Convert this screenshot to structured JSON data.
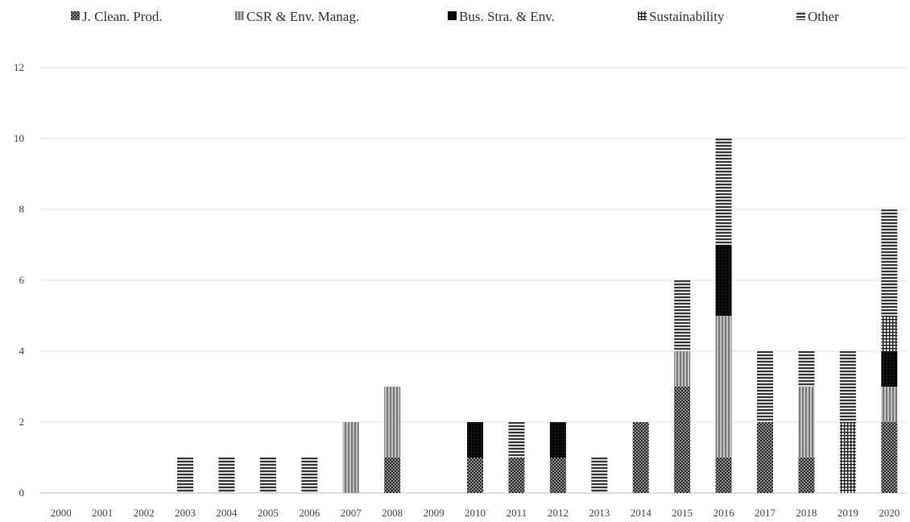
{
  "chart_data": {
    "type": "bar",
    "stacked": true,
    "categories": [
      "2000",
      "2001",
      "2002",
      "2003",
      "2004",
      "2005",
      "2006",
      "2007",
      "2008",
      "2009",
      "2010",
      "2011",
      "2012",
      "2013",
      "2014",
      "2015",
      "2016",
      "2017",
      "2018",
      "2019",
      "2020"
    ],
    "series": [
      {
        "name": "J. Clean. Prod.",
        "values": [
          0,
          0,
          0,
          0,
          0,
          0,
          0,
          0,
          1,
          0,
          1,
          1,
          1,
          0,
          2,
          3,
          1,
          2,
          1,
          0,
          2
        ],
        "color": "#3c3c3c",
        "pattern": "jcp"
      },
      {
        "name": "CSR & Env. Manag.",
        "values": [
          0,
          0,
          0,
          0,
          0,
          0,
          0,
          2,
          2,
          0,
          0,
          0,
          0,
          0,
          0,
          1,
          4,
          0,
          2,
          0,
          1
        ],
        "color": "#9a9a9a",
        "pattern": "csr"
      },
      {
        "name": "Bus. Stra. & Env.",
        "values": [
          0,
          0,
          0,
          0,
          0,
          0,
          0,
          0,
          0,
          0,
          1,
          0,
          1,
          0,
          0,
          0,
          2,
          0,
          0,
          0,
          1
        ],
        "color": "#000000",
        "pattern": "bse"
      },
      {
        "name": "Sustainability",
        "values": [
          0,
          0,
          0,
          0,
          0,
          0,
          0,
          0,
          0,
          0,
          0,
          0,
          0,
          0,
          0,
          0,
          0,
          0,
          0,
          2,
          1
        ],
        "color": "#555555",
        "pattern": "sus"
      },
      {
        "name": "Other",
        "values": [
          0,
          0,
          0,
          1,
          1,
          1,
          1,
          0,
          0,
          0,
          0,
          1,
          0,
          1,
          0,
          2,
          3,
          2,
          1,
          2,
          3
        ],
        "color": "#4a4a4a",
        "pattern": "oth"
      }
    ],
    "ylim": [
      0,
      12
    ],
    "yticks": [
      0,
      2,
      4,
      6,
      8,
      10,
      12
    ],
    "grid": true,
    "legend": "top",
    "title": "",
    "xlabel": "",
    "ylabel": ""
  }
}
